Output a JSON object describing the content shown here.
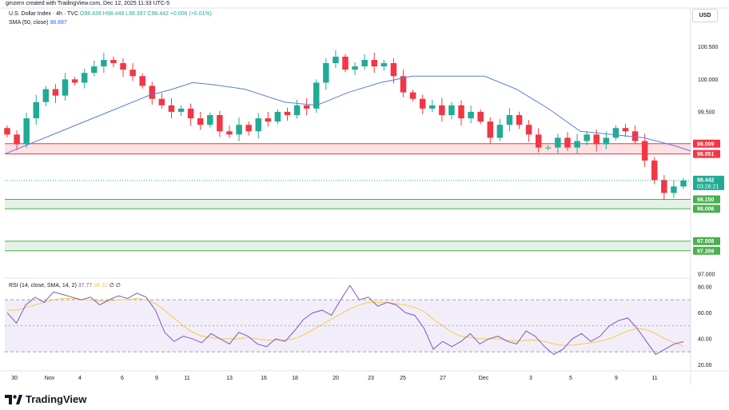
{
  "header": {
    "created_by": "gmzern created with TradingView.com, Dec 12, 2025 11:33 UTC-5"
  },
  "legend": {
    "symbol": "U.S. Dollar Index · 4h · TVC",
    "ohlc": "O98.439 H98.448 L98.397 C98.442 +0.006 (+0.01%)",
    "sma_label": "SMA (50, close)",
    "sma_value": "98.897",
    "rsi_label": "RSI (14, close, SMA, 14, 2)",
    "rsi_value": "37.77",
    "rsi_sma_value": "34.32",
    "rsi_suffix": "∅ ∅"
  },
  "currency": "USD",
  "brand": "TradingView",
  "colors": {
    "up": "#22ab94",
    "down": "#f23645",
    "sma": "#5b7fd6",
    "rsi": "#7e57c2",
    "rsi_ma": "#f7c948",
    "resistance": "#f23645",
    "support": "#4caf50"
  },
  "chart_data": {
    "type": "candlestick",
    "timeframe": "4h",
    "price_axis": {
      "ticks": [
        "100.500",
        "100.000",
        "99.500",
        "97.000"
      ],
      "ylim": [
        96.95,
        101.1
      ]
    },
    "x_ticks": [
      "30",
      "Nov",
      "4",
      "6",
      "9",
      "11",
      "13",
      "16",
      "18",
      "20",
      "23",
      "25",
      "27",
      "Dec",
      "3",
      "5",
      "9",
      "11"
    ],
    "price_labels": [
      {
        "label": "99.009",
        "kind": "resistance"
      },
      {
        "label": "98.851",
        "kind": "resistance"
      },
      {
        "label": "98.442",
        "kind": "current",
        "countdown": "03:26:21"
      },
      {
        "label": "98.150",
        "kind": "support"
      },
      {
        "label": "98.006",
        "kind": "support"
      },
      {
        "label": "97.508",
        "kind": "support"
      },
      {
        "label": "97.359",
        "kind": "support"
      }
    ],
    "zones": [
      {
        "name": "resistance",
        "from": 98.851,
        "to": 99.009
      },
      {
        "name": "support-1",
        "from": 98.006,
        "to": 98.15
      },
      {
        "name": "support-2",
        "from": 97.359,
        "to": 97.508
      }
    ],
    "close_path": [
      99.15,
      99.0,
      99.4,
      99.65,
      99.85,
      99.75,
      100.0,
      99.95,
      100.1,
      100.2,
      100.3,
      100.25,
      100.15,
      100.05,
      99.9,
      99.7,
      99.6,
      99.5,
      99.55,
      99.4,
      99.3,
      99.45,
      99.2,
      99.15,
      99.3,
      99.2,
      99.4,
      99.35,
      99.5,
      99.45,
      99.6,
      99.55,
      99.95,
      100.25,
      100.35,
      100.15,
      100.2,
      100.3,
      100.2,
      100.25,
      100.05,
      99.8,
      99.7,
      99.55,
      99.6,
      99.45,
      99.6,
      99.4,
      99.5,
      99.35,
      99.1,
      99.3,
      99.45,
      99.3,
      99.15,
      98.95,
      98.95,
      99.1,
      98.95,
      99.05,
      99.15,
      99.0,
      99.1,
      99.25,
      99.2,
      99.05,
      98.75,
      98.45,
      98.25,
      98.35,
      98.442
    ],
    "sma50": {
      "x": [
        0,
        20,
        60,
        100,
        140,
        180,
        210,
        235,
        260,
        300,
        350,
        390,
        430,
        470,
        510,
        560,
        600,
        640,
        680,
        720,
        760,
        800,
        840,
        858
      ],
      "y": [
        98.85,
        98.95,
        99.15,
        99.35,
        99.55,
        99.75,
        99.85,
        99.95,
        99.92,
        99.85,
        99.65,
        99.6,
        99.8,
        99.95,
        100.05,
        100.05,
        100.05,
        99.85,
        99.55,
        99.2,
        99.15,
        99.1,
        98.97,
        98.897
      ]
    },
    "rsi": {
      "ticks": [
        "80.00",
        "60.00",
        "40.00",
        "20.00"
      ],
      "ylim": [
        16,
        86
      ],
      "bands": [
        70,
        50,
        30
      ],
      "values": [
        60,
        52,
        66,
        72,
        68,
        76,
        74,
        72,
        70,
        72,
        66,
        70,
        73,
        71,
        75,
        72,
        62,
        45,
        38,
        42,
        40,
        37,
        44,
        40,
        36,
        45,
        42,
        36,
        34,
        40,
        38,
        46,
        55,
        60,
        62,
        58,
        70,
        81,
        70,
        72,
        65,
        68,
        66,
        60,
        58,
        48,
        32,
        38,
        34,
        38,
        44,
        36,
        40,
        42,
        38,
        36,
        46,
        42,
        34,
        28,
        32,
        40,
        44,
        38,
        42,
        50,
        54,
        56,
        48,
        38,
        28,
        32,
        36,
        37.77
      ],
      "ma": [
        62,
        62,
        64,
        66,
        68,
        70,
        71,
        71,
        70,
        70,
        69,
        69,
        70,
        70,
        71,
        70,
        67,
        62,
        56,
        50,
        45,
        42,
        41,
        40,
        40,
        40,
        41,
        40,
        39,
        39,
        39,
        40,
        43,
        47,
        51,
        55,
        59,
        63,
        66,
        68,
        68,
        68,
        67,
        66,
        64,
        61,
        55,
        50,
        45,
        42,
        41,
        40,
        40,
        40,
        39,
        38,
        39,
        39,
        38,
        36,
        35,
        35,
        36,
        37,
        38,
        40,
        43,
        46,
        48,
        47,
        44,
        40,
        37,
        34.32
      ]
    }
  }
}
